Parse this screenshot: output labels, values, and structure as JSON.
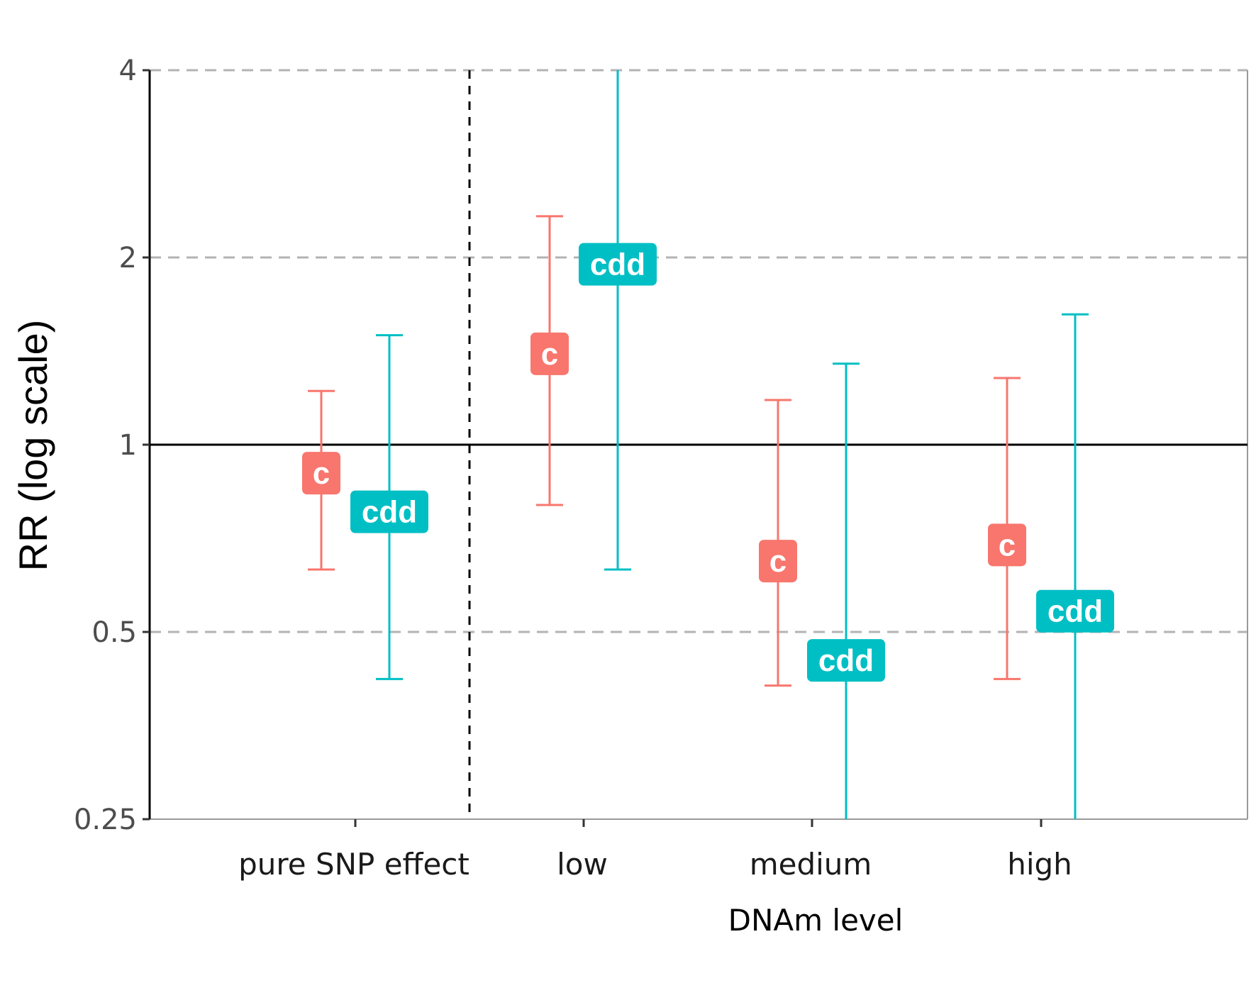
{
  "chart_data": {
    "type": "errorbar",
    "title": "",
    "xlabel": "DNAm level",
    "ylabel": "RR (log scale)",
    "y_scale": "log2",
    "ylim": [
      0.25,
      4
    ],
    "yticks": [
      {
        "value": 0.25,
        "label": "0.25"
      },
      {
        "value": 0.5,
        "label": "0.5"
      },
      {
        "value": 1,
        "label": "1"
      },
      {
        "value": 2,
        "label": "2"
      },
      {
        "value": 4,
        "label": "4"
      }
    ],
    "categories": [
      "pure SNP effect",
      "low",
      "medium",
      "high"
    ],
    "reference_line": 1,
    "dashed_separator": "between pure SNP effect and low",
    "grid": "dashed horizontal at 0.5, 2 and 4",
    "legend": "none",
    "series": [
      {
        "label": "c",
        "color": "#F8766D",
        "points": [
          {
            "category": "pure SNP effect",
            "estimate": 0.9,
            "lower": 0.63,
            "upper": 1.22
          },
          {
            "category": "low",
            "estimate": 1.4,
            "lower": 0.8,
            "upper": 2.33
          },
          {
            "category": "medium",
            "estimate": 0.65,
            "lower": 0.41,
            "upper": 1.18
          },
          {
            "category": "high",
            "estimate": 0.69,
            "lower": 0.42,
            "upper": 1.28
          }
        ]
      },
      {
        "label": "cdd",
        "color": "#00BFC4",
        "points": [
          {
            "category": "pure SNP effect",
            "estimate": 0.78,
            "lower": 0.42,
            "upper": 1.5
          },
          {
            "category": "low",
            "estimate": 1.95,
            "lower": 0.63,
            "upper": 4.0
          },
          {
            "category": "medium",
            "estimate": 0.45,
            "lower": 0.25,
            "upper": 1.35
          },
          {
            "category": "high",
            "estimate": 0.54,
            "lower": 0.25,
            "upper": 1.62
          }
        ]
      }
    ]
  }
}
